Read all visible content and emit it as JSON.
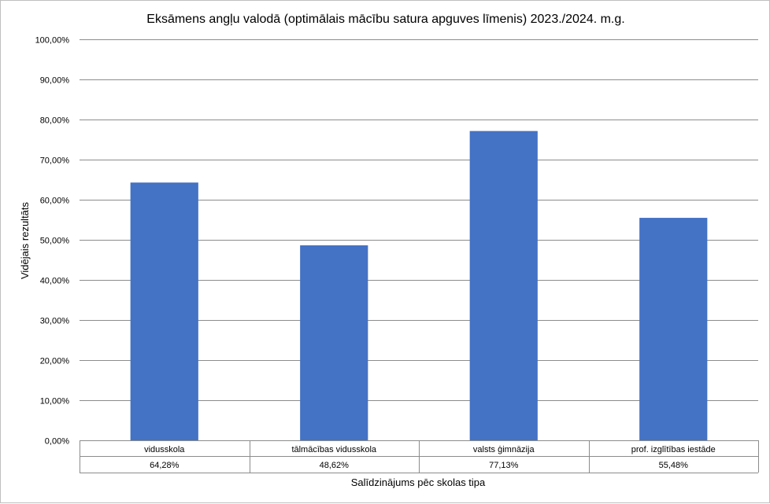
{
  "chart_data": {
    "type": "bar",
    "title": "Eksāmens angļu valodā (optimālais mācību satura apguves līmenis) 2023./2024. m.g.",
    "xlabel": "Salīdzinājums pēc skolas tipa",
    "ylabel": "Vidējais rezultāts",
    "categories": [
      "vidusskola",
      "tālmācības vidusskola",
      "valsts ģimnāzija",
      "prof. izglītības iestāde"
    ],
    "values": [
      64.28,
      48.62,
      77.13,
      55.48
    ],
    "value_labels": [
      "64,28%",
      "48,62%",
      "77,13%",
      "55,48%"
    ],
    "ylim": [
      0,
      100
    ],
    "y_ticks": [
      0,
      10,
      20,
      30,
      40,
      50,
      60,
      70,
      80,
      90,
      100
    ],
    "y_tick_labels": [
      "0,00%",
      "10,00%",
      "20,00%",
      "30,00%",
      "40,00%",
      "50,00%",
      "60,00%",
      "70,00%",
      "80,00%",
      "90,00%",
      "100,00%"
    ],
    "grid": true,
    "legend": "none",
    "data_table": true,
    "colors": {
      "bar": "#4472c4",
      "gridline": "#8c8c8c",
      "table_border": "#8c8c8c",
      "frame": "#bfbfbf"
    }
  }
}
